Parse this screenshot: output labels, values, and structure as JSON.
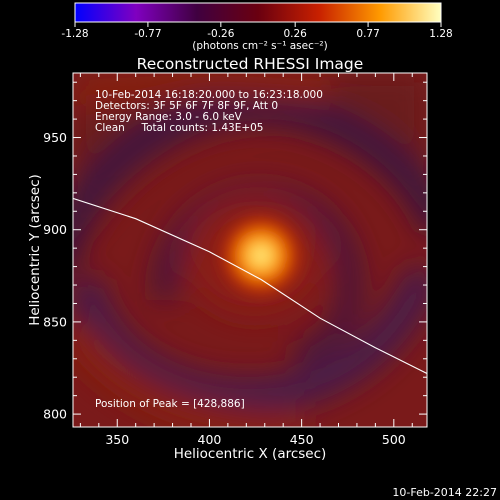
{
  "colorbar": {
    "tick_labels": [
      "-1.28",
      "-0.77",
      "-0.26",
      "0.26",
      "0.77",
      "1.28"
    ],
    "range": [
      -1.28,
      1.28
    ],
    "units_label": "(photons cm⁻² s⁻¹ asec⁻²)",
    "colors": [
      "#0000ff",
      "#8000c0",
      "#400040",
      "#6a0010",
      "#c82000",
      "#ff9a00",
      "#ffffc0"
    ]
  },
  "chart_data": {
    "type": "heatmap",
    "title": "Reconstructed RHESSI Image",
    "xlabel": "Heliocentric X (arcsec)",
    "ylabel": "Heliocentric Y (arcsec)",
    "xlim": [
      326,
      518
    ],
    "ylim": [
      793,
      985
    ],
    "x_ticks": [
      350,
      400,
      450,
      500
    ],
    "y_ticks": [
      800,
      850,
      900,
      950
    ],
    "x_tick_labels": [
      "350",
      "400",
      "450",
      "500"
    ],
    "y_tick_labels": [
      "800",
      "850",
      "900",
      "950"
    ],
    "peak": {
      "x": 428,
      "y": 886
    },
    "info_lines": [
      "10-Feb-2014 16:18:20.000 to 16:23:18.000",
      "Detectors: 3F 5F 6F 7F 8F 9F, Att 0",
      "Energy Range: 3.0 - 6.0 keV",
      "Clean     Total counts: 1.43E+05"
    ],
    "peak_label": "Position of Peak = [428,886]",
    "limb_line": {
      "x": [
        326,
        360,
        400,
        428,
        460,
        490,
        518
      ],
      "y": [
        917,
        906,
        888,
        873,
        852,
        836,
        822
      ]
    }
  },
  "footer": {
    "timestamp": "10-Feb-2014 22:27"
  }
}
